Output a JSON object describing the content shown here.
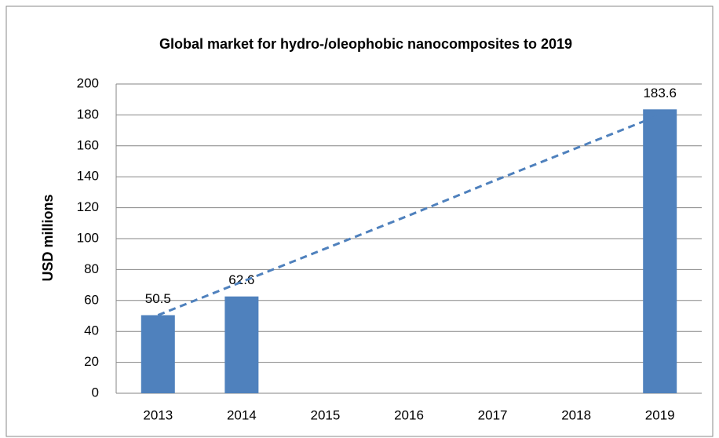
{
  "chart_data": {
    "type": "bar",
    "title": "Global market for hydro-/oleophobic nanocomposites to 2019",
    "y_label": "USD millions",
    "categories": [
      "2013",
      "2014",
      "2015",
      "2016",
      "2017",
      "2018",
      "2019"
    ],
    "series": [
      {
        "type": "bar",
        "color": "#4f81bd",
        "values": [
          50.5,
          62.6,
          null,
          null,
          null,
          null,
          183.6
        ]
      },
      {
        "type": "line",
        "dashed": true,
        "color": "#4f81bd",
        "values": [
          50.5,
          72,
          93.5,
          115,
          137,
          158.5,
          180
        ]
      }
    ],
    "ylim": [
      0,
      200
    ],
    "yticks": [
      0,
      20,
      40,
      60,
      80,
      100,
      120,
      140,
      160,
      180,
      200
    ],
    "grid": true
  }
}
